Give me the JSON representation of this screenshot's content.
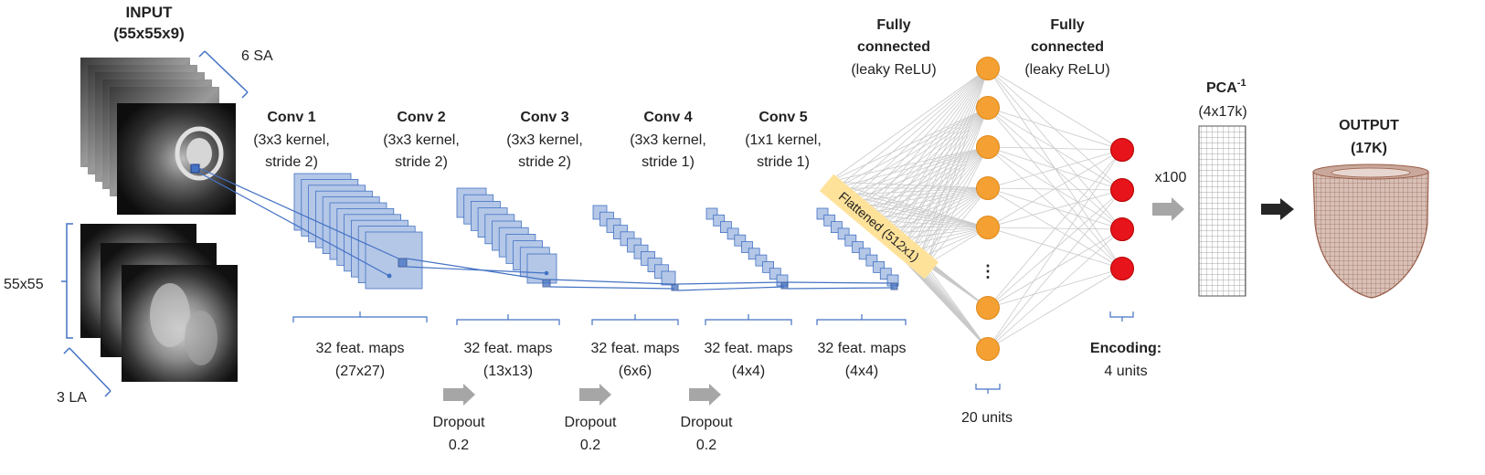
{
  "input": {
    "title": "INPUT",
    "dims": "(55x55x9)",
    "sa_label": "6 SA",
    "la_label": "3 LA",
    "size_label": "55x55"
  },
  "convs": [
    {
      "name": "Conv 1",
      "kernel": "(3x3 kernel,",
      "stride": "stride 2)",
      "maps": "32 feat. maps",
      "size": "(27x27)"
    },
    {
      "name": "Conv 2",
      "kernel": "(3x3 kernel,",
      "stride": "stride 2)",
      "maps": "32 feat. maps",
      "size": "(13x13)"
    },
    {
      "name": "Conv 3",
      "kernel": "(3x3 kernel,",
      "stride": "stride 2)",
      "maps": "32 feat. maps",
      "size": "(6x6)"
    },
    {
      "name": "Conv 4",
      "kernel": "(3x3 kernel,",
      "stride": "stride 1)",
      "maps": "32 feat. maps",
      "size": "(4x4)"
    },
    {
      "name": "Conv 5",
      "kernel": "(1x1 kernel,",
      "stride": "stride 1)",
      "maps": "32 feat. maps",
      "size": "(4x4)"
    }
  ],
  "dropouts": [
    {
      "label": "Dropout",
      "value": "0.2"
    },
    {
      "label": "Dropout",
      "value": "0.2"
    },
    {
      "label": "Dropout",
      "value": "0.2"
    }
  ],
  "flattened": "Flattened (512x1)",
  "fc1": {
    "title": "Fully",
    "title2": "connected",
    "activation": "(leaky ReLU)",
    "units": "20 units",
    "ellipsis": "⋮"
  },
  "fc2": {
    "title": "Fully",
    "title2": "connected",
    "activation": "(leaky ReLU)"
  },
  "encoding": {
    "title": "Encoding:",
    "units": "4 units"
  },
  "multiplier": "x100",
  "pca": {
    "label": "PCA",
    "sup": "-1",
    "dims": "(4x17k)"
  },
  "output": {
    "title": "OUTPUT",
    "dims": "(17K)"
  },
  "colors": {
    "conv_fill": "#b4c7e7",
    "conv_stroke": "#4472c4",
    "fc_node": "#f4a033",
    "enc_node": "#e8141b",
    "flatten_fill": "#ffe29a",
    "bracket": "#4472c4",
    "arrow_gray": "#a6a6a6",
    "arrow_dark": "#262626",
    "heart": "#b07865"
  }
}
